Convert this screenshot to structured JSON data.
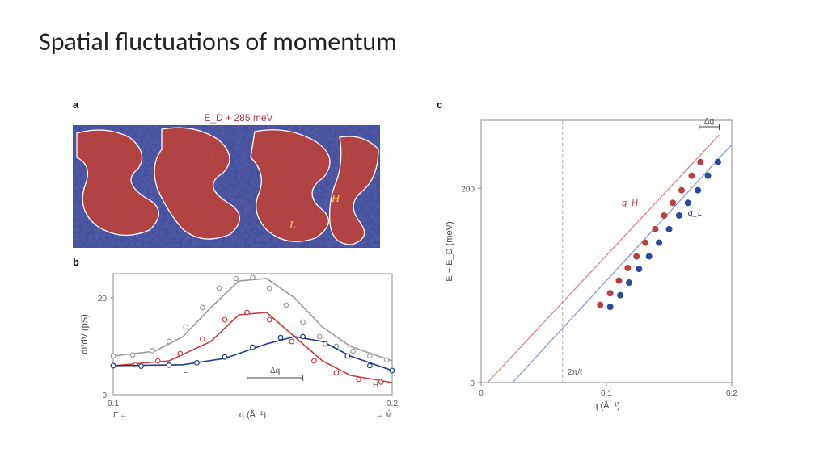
{
  "title": "Spatial fluctuations of momentum",
  "panelA": {
    "label": "a",
    "title": "E_D + 285 meV",
    "labelH": "H",
    "labelL": "L",
    "colors": {
      "blue": "#2a3d8f",
      "red": "#b84a4a",
      "darkred": "#7a2a2a",
      "outline": "#ffffff"
    }
  },
  "panelB": {
    "label": "b",
    "ylabel": "dI/dV (pS)",
    "xlabel": "q (Å⁻¹)",
    "xmin": 0.1,
    "xmax": 0.2,
    "xarrowL": "Γ̄",
    "xarrowR": "M̄",
    "ymax": 25,
    "ytick": 20,
    "annotL": "L",
    "annotH": "H",
    "annotDq": "Δq",
    "grey": {
      "color": "#999999",
      "line": [
        [
          0.1,
          8
        ],
        [
          0.115,
          9
        ],
        [
          0.125,
          12
        ],
        [
          0.135,
          18
        ],
        [
          0.145,
          23.5
        ],
        [
          0.155,
          24
        ],
        [
          0.165,
          20
        ],
        [
          0.175,
          14
        ],
        [
          0.185,
          10
        ],
        [
          0.195,
          8
        ],
        [
          0.2,
          7
        ]
      ],
      "pts": [
        [
          0.1,
          8
        ],
        [
          0.107,
          8.2
        ],
        [
          0.114,
          9.1
        ],
        [
          0.12,
          11
        ],
        [
          0.126,
          14
        ],
        [
          0.132,
          18
        ],
        [
          0.138,
          22
        ],
        [
          0.144,
          24
        ],
        [
          0.15,
          24.2
        ],
        [
          0.156,
          22
        ],
        [
          0.162,
          18.5
        ],
        [
          0.168,
          15
        ],
        [
          0.174,
          12
        ],
        [
          0.18,
          10
        ],
        [
          0.186,
          9
        ],
        [
          0.192,
          8
        ],
        [
          0.198,
          7.2
        ]
      ]
    },
    "red": {
      "color": "#c83c3c",
      "line": [
        [
          0.1,
          6
        ],
        [
          0.12,
          7
        ],
        [
          0.135,
          11
        ],
        [
          0.145,
          16.5
        ],
        [
          0.155,
          17
        ],
        [
          0.165,
          12
        ],
        [
          0.175,
          7
        ],
        [
          0.185,
          4
        ],
        [
          0.195,
          3
        ],
        [
          0.2,
          2.5
        ]
      ],
      "pts": [
        [
          0.1,
          6
        ],
        [
          0.108,
          6.2
        ],
        [
          0.116,
          7
        ],
        [
          0.124,
          8.5
        ],
        [
          0.132,
          11.5
        ],
        [
          0.14,
          15.5
        ],
        [
          0.148,
          17
        ],
        [
          0.156,
          15.5
        ],
        [
          0.164,
          11
        ],
        [
          0.172,
          7
        ],
        [
          0.18,
          4.5
        ],
        [
          0.188,
          3.2
        ],
        [
          0.196,
          2.6
        ]
      ]
    },
    "blue": {
      "color": "#1e3a8a",
      "line": [
        [
          0.1,
          6
        ],
        [
          0.125,
          6.2
        ],
        [
          0.14,
          7.5
        ],
        [
          0.155,
          10.5
        ],
        [
          0.165,
          12
        ],
        [
          0.175,
          11
        ],
        [
          0.185,
          8
        ],
        [
          0.195,
          6
        ],
        [
          0.2,
          5
        ]
      ],
      "pts": [
        [
          0.1,
          6
        ],
        [
          0.11,
          5.9
        ],
        [
          0.12,
          6.1
        ],
        [
          0.13,
          6.6
        ],
        [
          0.14,
          7.8
        ],
        [
          0.15,
          9.8
        ],
        [
          0.16,
          11.8
        ],
        [
          0.168,
          12
        ],
        [
          0.176,
          10.5
        ],
        [
          0.184,
          8
        ],
        [
          0.192,
          6
        ],
        [
          0.2,
          5
        ]
      ]
    }
  },
  "panelC": {
    "label": "c",
    "ylabel": "E − E_D (meV)",
    "xlabel": "q (Å⁻¹)",
    "xmin": 0,
    "xmax": 0.2,
    "xticks": [
      0,
      0.1,
      0.2
    ],
    "ymin": 0,
    "ymax": 270,
    "yticks": [
      0,
      200
    ],
    "vline": 0.065,
    "vlineLabel": "2π/ℓ",
    "annotDq": "Δq",
    "red": {
      "color": "#b84040",
      "lightline": "#d97b7b",
      "label": "q_H",
      "pts": [
        [
          0.095,
          80
        ],
        [
          0.103,
          92
        ],
        [
          0.11,
          105
        ],
        [
          0.117,
          118
        ],
        [
          0.124,
          130
        ],
        [
          0.131,
          144
        ],
        [
          0.139,
          158
        ],
        [
          0.146,
          172
        ],
        [
          0.153,
          185
        ],
        [
          0.16,
          198
        ],
        [
          0.168,
          213
        ],
        [
          0.175,
          227
        ]
      ],
      "line": [
        [
          0.005,
          0
        ],
        [
          0.19,
          255
        ]
      ]
    },
    "blue": {
      "color": "#2b4a9c",
      "lightline": "#7a96d4",
      "label": "q_L",
      "pts": [
        [
          0.103,
          78
        ],
        [
          0.111,
          90
        ],
        [
          0.118,
          103
        ],
        [
          0.126,
          117
        ],
        [
          0.134,
          130
        ],
        [
          0.142,
          144
        ],
        [
          0.15,
          158
        ],
        [
          0.158,
          172
        ],
        [
          0.165,
          185
        ],
        [
          0.173,
          198
        ],
        [
          0.181,
          213
        ],
        [
          0.189,
          227
        ]
      ],
      "line": [
        [
          0.025,
          0
        ],
        [
          0.2,
          245
        ]
      ]
    }
  }
}
